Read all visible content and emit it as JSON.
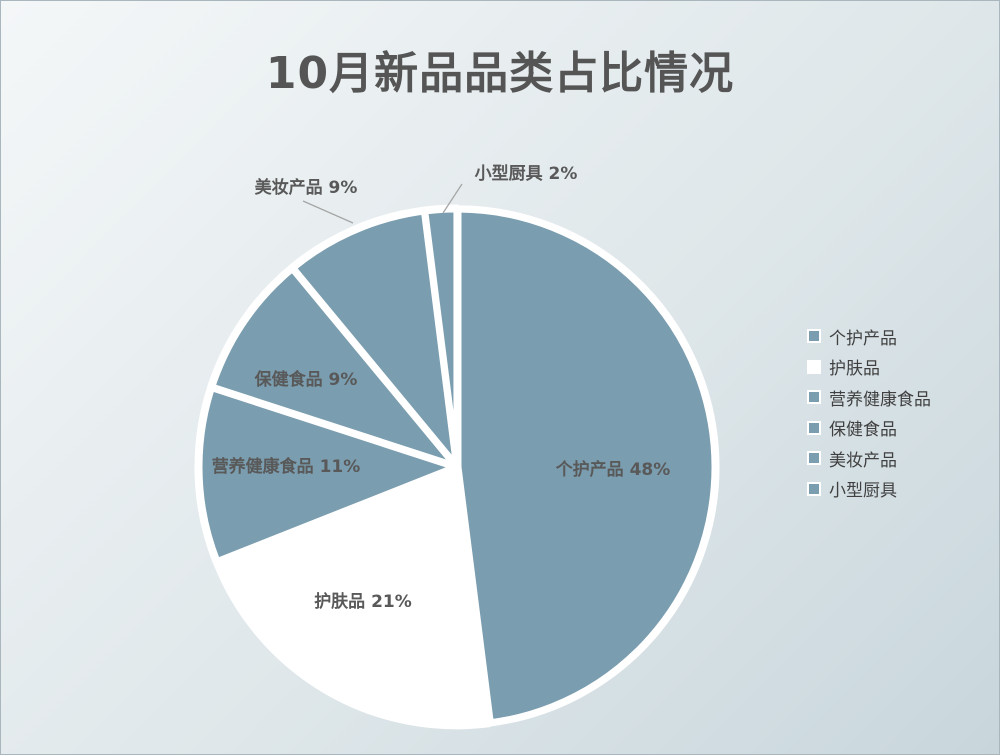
{
  "chart_data": {
    "type": "pie",
    "title": "10月新品品类占比情况",
    "categories": [
      "个护产品",
      "护肤品",
      "营养健康食品",
      "保健食品",
      "美妆产品",
      "小型厨具"
    ],
    "values": [
      48,
      21,
      11,
      9,
      9,
      2
    ],
    "data_labels": [
      "个护产品 48%",
      "护肤品 21%",
      "营养健康食品 11%",
      "保健食品 9%",
      "美妆产品 9%",
      "小型厨具 2%"
    ],
    "colors": [
      "#7a9daf",
      "#ffffff",
      "#7a9daf",
      "#7a9daf",
      "#7a9daf",
      "#7a9daf"
    ],
    "legend": "right"
  }
}
